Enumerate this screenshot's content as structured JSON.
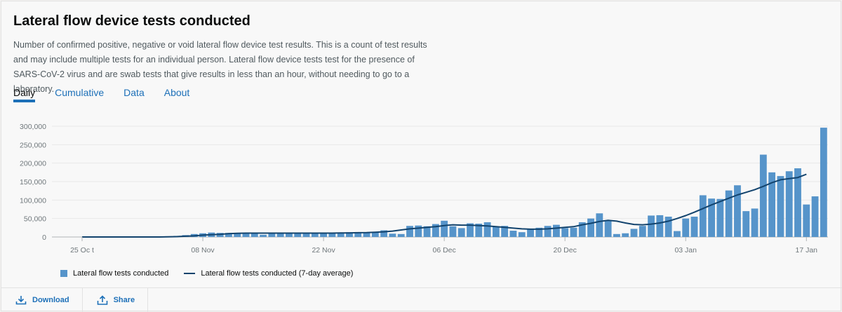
{
  "title": "Lateral flow device tests conducted",
  "description": "Number of confirmed positive, negative or void lateral flow device test results. This is a count of test results and may include multiple tests for an individual person. Lateral flow device tests test for the presence of SARS-CoV-2 virus and are swab tests that give results in less than an hour, without needing to go to a laboratory.",
  "tabs": [
    {
      "label": "Daily",
      "active": true
    },
    {
      "label": "Cumulative",
      "active": false
    },
    {
      "label": "Data",
      "active": false
    },
    {
      "label": "About",
      "active": false
    }
  ],
  "footer": {
    "download_label": "Download",
    "share_label": "Share"
  },
  "colors": {
    "bar": "#5694ca",
    "line": "#12436d",
    "link": "#1d70b8"
  },
  "chart_data": {
    "type": "bar",
    "x_start_date": "2020-10-22",
    "x_tick_labels": [
      {
        "label": "25 Oc t",
        "index": 3
      },
      {
        "label": "08 Nov",
        "index": 17
      },
      {
        "label": "22 Nov",
        "index": 31
      },
      {
        "label": "06 Dec",
        "index": 45
      },
      {
        "label": "20 Dec",
        "index": 59
      },
      {
        "label": "03 Jan",
        "index": 73
      },
      {
        "label": "17 Jan",
        "index": 87
      }
    ],
    "y_ticks": [
      "0",
      "50,000",
      "100,000",
      "150,000",
      "200,000",
      "250,000",
      "300,000"
    ],
    "ylim": [
      0,
      300000
    ],
    "grid": true,
    "legend_position": "bottom-left",
    "series": [
      {
        "name": "Lateral flow tests conducted",
        "kind": "bar",
        "values": [
          0,
          0,
          0,
          0,
          0,
          0,
          0,
          0,
          0,
          0,
          0,
          0,
          1000,
          2000,
          3000,
          5000,
          8000,
          10000,
          12000,
          11000,
          11000,
          10000,
          11000,
          9000,
          6000,
          11000,
          10000,
          11000,
          11000,
          10000,
          11000,
          9000,
          12000,
          12000,
          13000,
          12000,
          13000,
          13000,
          18000,
          9000,
          8000,
          30000,
          31000,
          29000,
          35000,
          44000,
          29000,
          24000,
          37000,
          36000,
          40000,
          28000,
          30000,
          17000,
          13000,
          20000,
          25000,
          30000,
          33000,
          24000,
          25000,
          40000,
          50000,
          64000,
          45000,
          8000,
          10000,
          22000,
          30000,
          58000,
          59000,
          55000,
          16000,
          50000,
          55000,
          113000,
          104000,
          103000,
          126000,
          140000,
          70000,
          77000,
          223000,
          175000,
          165000,
          178000,
          186000,
          88000,
          110000,
          296000
        ]
      },
      {
        "name": "Lateral flow tests conducted (7-day average)",
        "kind": "line",
        "values": [
          null,
          null,
          null,
          0,
          0,
          0,
          0,
          0,
          0,
          0,
          0,
          0,
          0,
          500,
          1000,
          2000,
          3000,
          5000,
          6000,
          7000,
          9000,
          10000,
          10500,
          10500,
          10500,
          10500,
          10500,
          10500,
          10500,
          10500,
          10500,
          10500,
          10500,
          11000,
          11000,
          11500,
          12000,
          13000,
          14000,
          16000,
          19000,
          22000,
          24000,
          26000,
          28000,
          31000,
          33000,
          32000,
          32000,
          31000,
          30000,
          28000,
          26000,
          24000,
          22000,
          21000,
          21000,
          22000,
          24000,
          26000,
          28000,
          33000,
          37000,
          42000,
          45000,
          43000,
          38000,
          34000,
          33000,
          35000,
          38000,
          43000,
          50000,
          58000,
          67000,
          77000,
          87000,
          96000,
          105000,
          114000,
          121000,
          128000,
          137000,
          147000,
          155000,
          158000,
          161000,
          170000,
          null,
          null
        ]
      }
    ]
  }
}
